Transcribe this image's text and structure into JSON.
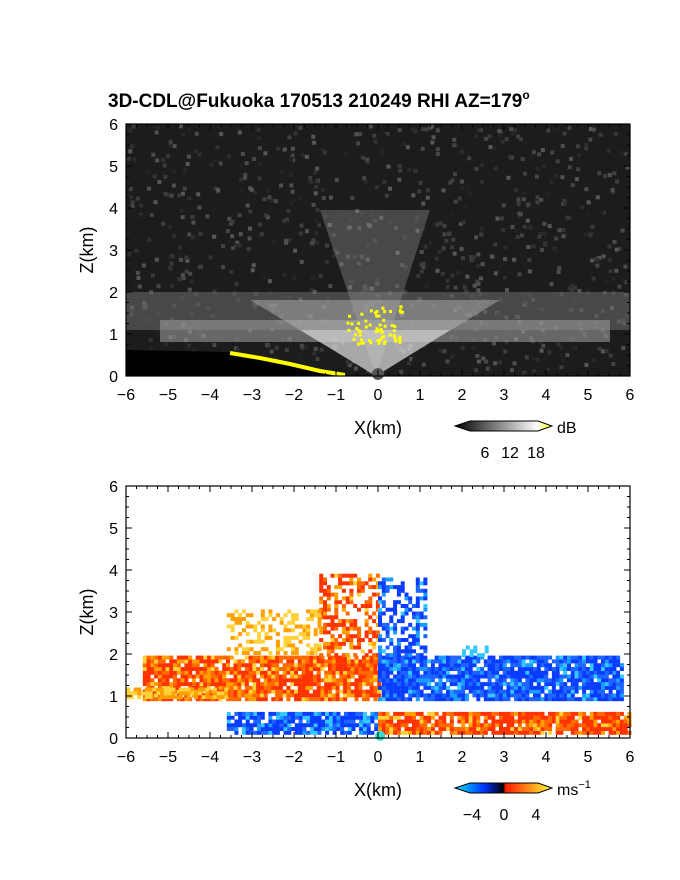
{
  "title_main": "3D-CDL@Fukuoka 170513 210249 RHI AZ=179",
  "title_sup": "o",
  "chart_data": [
    {
      "type": "heatmap",
      "panel": "backscatter",
      "xlabel": "X(km)",
      "ylabel": "Z(km)",
      "xlim": [
        -6,
        6
      ],
      "ylim": [
        0,
        6
      ],
      "x_ticks": [
        "-6",
        "-5",
        "-4",
        "-3",
        "-2",
        "-1",
        "0",
        "1",
        "2",
        "3",
        "4",
        "5",
        "6"
      ],
      "y_ticks": [
        "0",
        "1",
        "2",
        "3",
        "4",
        "5",
        "6"
      ],
      "colorbar": {
        "ticks": [
          "6",
          "12",
          "18"
        ],
        "unit": "dB",
        "colors": [
          "#000000",
          "#ffffff",
          "#ffff00"
        ]
      },
      "features": {
        "aerosol_layer_km": [
          0.8,
          2.0
        ],
        "bright_returns_km": [
          0.9,
          1.6
        ],
        "weak_plume_top_km": 4.0
      }
    },
    {
      "type": "heatmap",
      "panel": "doppler_velocity",
      "xlabel": "X(km)",
      "ylabel": "Z(km)",
      "xlim": [
        -6,
        6
      ],
      "ylim": [
        0,
        6
      ],
      "x_ticks": [
        "-6",
        "-5",
        "-4",
        "-3",
        "-2",
        "-1",
        "0",
        "1",
        "2",
        "3",
        "4",
        "5",
        "6"
      ],
      "y_ticks": [
        "0",
        "1",
        "2",
        "3",
        "4",
        "5",
        "6"
      ],
      "colorbar": {
        "ticks": [
          "−4",
          "0",
          "4"
        ],
        "unit": "ms",
        "unit_sup": "−1",
        "colors": [
          "#00e5ff",
          "#0033ff",
          "#000000",
          "#ff1a00",
          "#ffff33"
        ]
      },
      "features": {
        "negative_side": "left (X<0) aloft: positive (red/orange) velocities",
        "positive_side": "right (X>0) aloft: negative (blue) velocities",
        "layer_top_km": 2.0,
        "plume_top_km": 4.0
      }
    }
  ]
}
